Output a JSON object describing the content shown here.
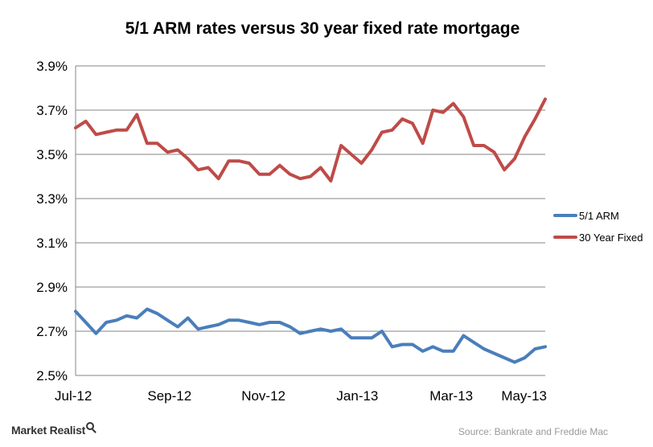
{
  "chart_data": {
    "type": "line",
    "title": "5/1 ARM rates versus 30 year fixed rate mortgage",
    "xlabel": "",
    "ylabel": "",
    "ylim": [
      2.5,
      3.9
    ],
    "yticks": [
      "3.9%",
      "3.7%",
      "3.5%",
      "3.3%",
      "3.1%",
      "2.9%",
      "2.7%",
      "2.5%"
    ],
    "ytick_values": [
      3.9,
      3.7,
      3.5,
      3.3,
      3.1,
      2.9,
      2.7,
      2.5
    ],
    "xticks": [
      "Jul-12",
      "Sep-12",
      "Nov-12",
      "Jan-13",
      "Mar-13",
      "May-13"
    ],
    "grid": "horizontal",
    "legend": "right",
    "series": [
      {
        "name": "5/1 ARM",
        "color": "#4a7ebb",
        "values": [
          2.79,
          2.74,
          2.69,
          2.74,
          2.75,
          2.77,
          2.76,
          2.8,
          2.78,
          2.75,
          2.72,
          2.76,
          2.71,
          2.72,
          2.73,
          2.75,
          2.75,
          2.74,
          2.73,
          2.74,
          2.74,
          2.72,
          2.69,
          2.7,
          2.71,
          2.7,
          2.71,
          2.67,
          2.67,
          2.67,
          2.7,
          2.63,
          2.64,
          2.64,
          2.61,
          2.63,
          2.61,
          2.61,
          2.68,
          2.65,
          2.62,
          2.6,
          2.58,
          2.56,
          2.58,
          2.62,
          2.63
        ]
      },
      {
        "name": "30 Year Fixed",
        "color": "#be4b48",
        "values": [
          3.62,
          3.65,
          3.59,
          3.6,
          3.61,
          3.61,
          3.68,
          3.55,
          3.55,
          3.51,
          3.52,
          3.48,
          3.43,
          3.44,
          3.39,
          3.47,
          3.47,
          3.46,
          3.41,
          3.41,
          3.45,
          3.41,
          3.39,
          3.4,
          3.44,
          3.38,
          3.54,
          3.5,
          3.46,
          3.52,
          3.6,
          3.61,
          3.66,
          3.64,
          3.55,
          3.7,
          3.69,
          3.73,
          3.67,
          3.54,
          3.54,
          3.51,
          3.43,
          3.48,
          3.58,
          3.66,
          3.75
        ]
      }
    ]
  },
  "footer": {
    "brand": "Market Realist",
    "brand_icon": "magnifier-icon",
    "source": "Source: Bankrate and Freddie Mac"
  }
}
